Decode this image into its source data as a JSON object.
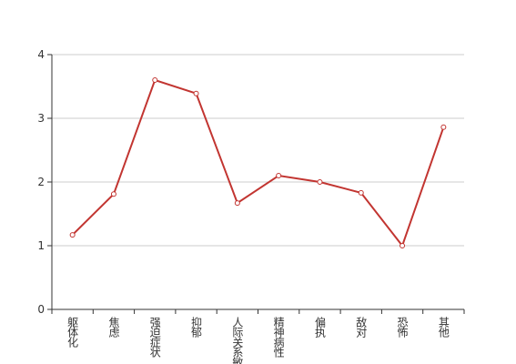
{
  "chart_data": {
    "type": "line",
    "categories": [
      "躯体化",
      "焦虑",
      "强迫症状",
      "抑郁",
      "人际关系敏感",
      "精神病性",
      "偏执",
      "敌对",
      "恐怖",
      "其他"
    ],
    "values": [
      1.17,
      1.81,
      3.6,
      3.39,
      1.67,
      2.1,
      2.0,
      1.83,
      1.0,
      2.86
    ],
    "color": "#c23531",
    "ylim": [
      0,
      4
    ],
    "yticks": [
      0,
      1,
      2,
      3,
      4
    ],
    "grid": true
  }
}
